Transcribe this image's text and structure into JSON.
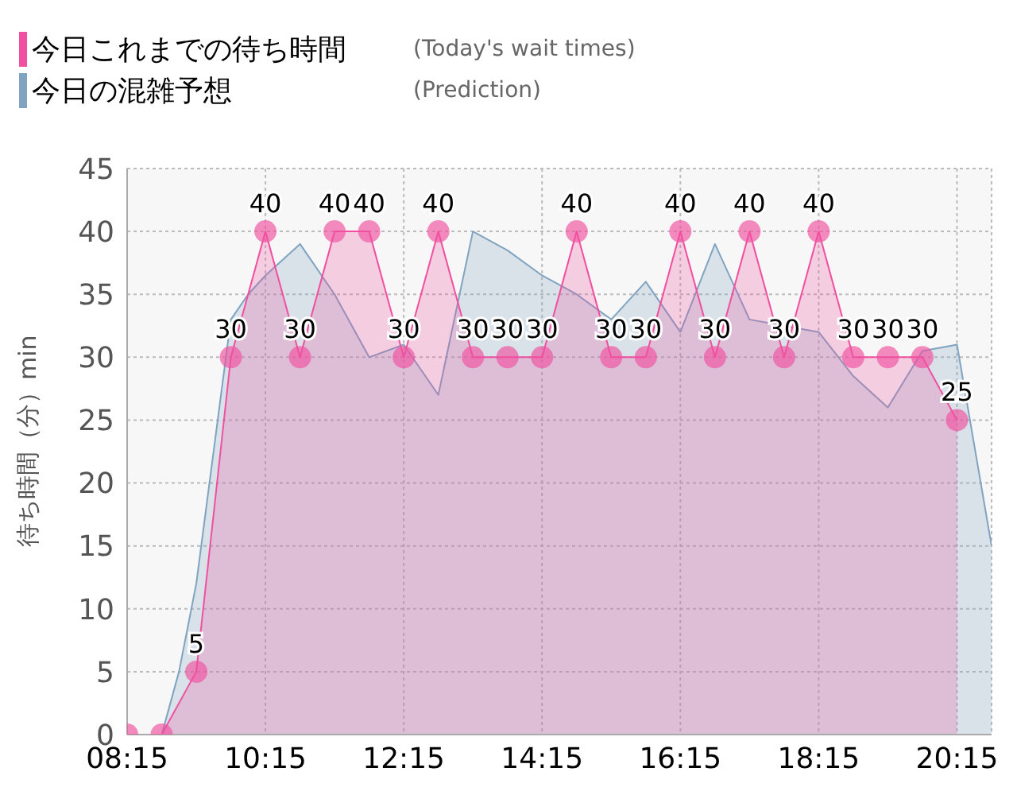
{
  "chart_data": {
    "type": "area",
    "ylabel": "待ち時間（分）min",
    "legend": "top left",
    "grid": true,
    "annotations": [
      "(Today's wait times)",
      "(Prediction)"
    ],
    "xlim": [
      8.25,
      20.75
    ],
    "xticks": [
      {
        "value": 8.25,
        "label": "08:15"
      },
      {
        "value": 10.25,
        "label": "10:15"
      },
      {
        "value": 12.25,
        "label": "12:15"
      },
      {
        "value": 14.25,
        "label": "14:15"
      },
      {
        "value": 16.25,
        "label": "16:15"
      },
      {
        "value": 18.25,
        "label": "18:15"
      },
      {
        "value": 20.25,
        "label": "20:15"
      }
    ],
    "ylim": [
      0,
      45
    ],
    "yticks": [
      0,
      5,
      10,
      15,
      20,
      25,
      30,
      35,
      40,
      45
    ],
    "series": [
      {
        "name": "今日これまでの待ち時間",
        "color": "#f0509f",
        "marker": "circle",
        "x": [
          8.25,
          8.75,
          9.25,
          9.75,
          10.25,
          10.75,
          11.25,
          11.75,
          12.25,
          12.75,
          13.25,
          13.75,
          14.25,
          14.75,
          15.25,
          15.75,
          16.25,
          16.75,
          17.25,
          17.75,
          18.25,
          18.75,
          19.25,
          19.75,
          20.25
        ],
        "values": [
          0,
          0,
          5,
          30,
          40,
          30,
          40,
          40,
          30,
          40,
          30,
          30,
          30,
          40,
          30,
          30,
          40,
          30,
          40,
          30,
          40,
          30,
          30,
          30,
          25
        ],
        "value_labels": [
          null,
          null,
          "5",
          "30",
          "40",
          "30",
          "40",
          "40",
          "30",
          "40",
          "30",
          "30",
          "30",
          "40",
          "30",
          "30",
          "40",
          "30",
          "40",
          "30",
          "40",
          "30",
          "30",
          "30",
          "25"
        ]
      },
      {
        "name": "今日の混雑予想",
        "color": "#7fa3c0",
        "marker": "none",
        "x": [
          8.25,
          8.75,
          9.0,
          9.25,
          9.75,
          10.0,
          10.25,
          10.75,
          11.25,
          11.75,
          12.25,
          12.75,
          13.25,
          13.75,
          14.25,
          14.75,
          15.25,
          15.75,
          16.25,
          16.75,
          17.25,
          17.75,
          18.25,
          18.75,
          19.25,
          19.75,
          20.25,
          20.75
        ],
        "values": [
          0,
          0,
          5,
          12,
          33,
          35,
          36.5,
          39,
          35,
          30,
          31,
          27,
          40,
          38.5,
          36.5,
          35,
          33,
          36,
          32,
          39,
          33,
          32.5,
          32,
          28.5,
          26,
          30.5,
          31,
          15
        ]
      }
    ]
  }
}
